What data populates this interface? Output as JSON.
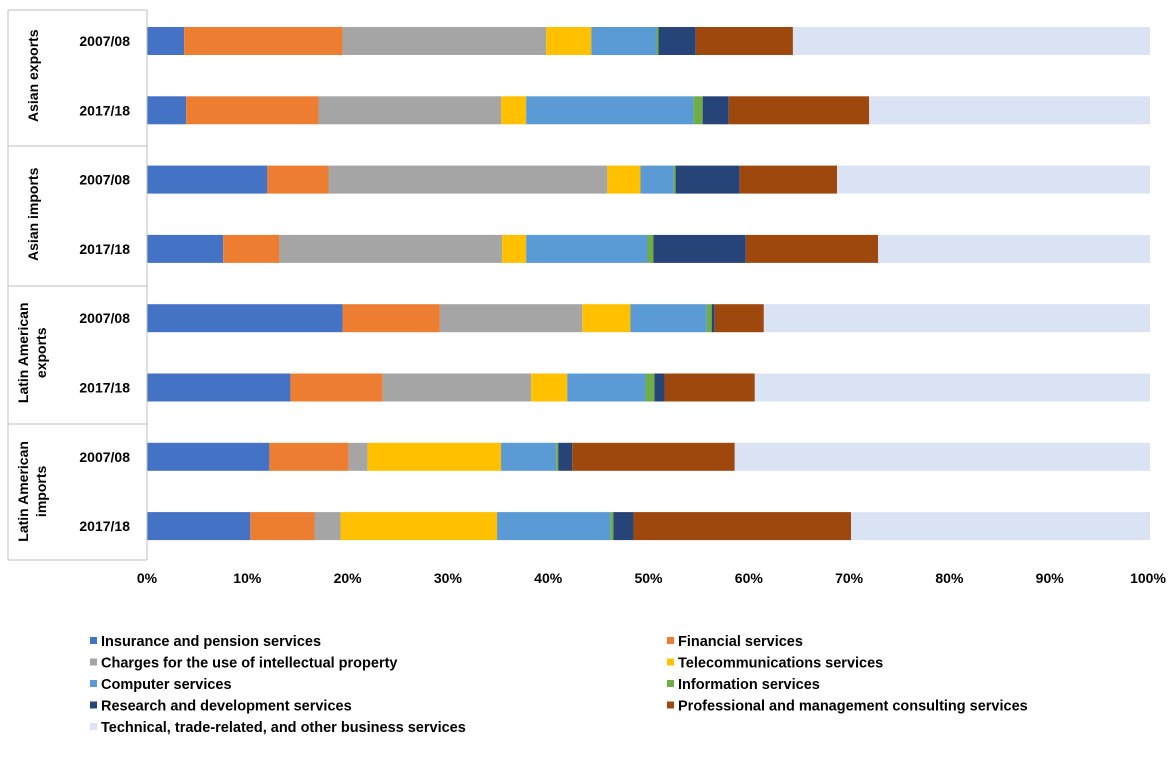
{
  "chart_data": {
    "type": "bar",
    "orientation": "horizontal",
    "stacked": "percent",
    "title": "",
    "xlabel": "",
    "ylabel": "",
    "xlim": [
      0,
      100
    ],
    "x_ticks": [
      "0%",
      "10%",
      "20%",
      "30%",
      "40%",
      "50%",
      "60%",
      "70%",
      "80%",
      "90%",
      "100%"
    ],
    "grid": false,
    "legend_position": "bottom",
    "groups": [
      {
        "label": "Asian exports",
        "lines": [
          "Asian exports"
        ]
      },
      {
        "label": "Asian imports",
        "lines": [
          "Asian imports"
        ]
      },
      {
        "label": "Latin American exports",
        "lines": [
          "Latin American",
          "exports"
        ]
      },
      {
        "label": "Latin American imports",
        "lines": [
          "Latin American",
          "imports"
        ]
      }
    ],
    "categories": [
      "2007/08",
      "2017/18",
      "2007/08",
      "2017/18",
      "2007/08",
      "2017/18",
      "2007/08",
      "2017/18"
    ],
    "series": [
      {
        "name": "Insurance and pension services",
        "color": "#4472C4",
        "values": [
          3.7,
          3.9,
          12.0,
          7.6,
          19.5,
          14.3,
          12.2,
          10.3
        ]
      },
      {
        "name": "Financial services",
        "color": "#ED7D31",
        "values": [
          15.8,
          13.2,
          6.1,
          5.6,
          9.7,
          9.2,
          7.9,
          6.4
        ]
      },
      {
        "name": "Charges for the use of intellectual property",
        "color": "#A5A5A5",
        "values": [
          20.3,
          18.2,
          27.8,
          22.2,
          14.2,
          14.8,
          1.9,
          2.6
        ]
      },
      {
        "name": "Telecommunications services",
        "color": "#FFC000",
        "values": [
          4.5,
          2.5,
          3.3,
          2.4,
          4.8,
          3.6,
          13.3,
          15.6
        ]
      },
      {
        "name": "Computer services",
        "color": "#5B9BD5",
        "values": [
          6.5,
          16.7,
          3.3,
          12.1,
          7.6,
          7.8,
          5.5,
          11.3
        ]
      },
      {
        "name": "Information services",
        "color": "#70AD47",
        "values": [
          0.2,
          0.9,
          0.2,
          0.6,
          0.5,
          0.9,
          0.2,
          0.3
        ]
      },
      {
        "name": "Research and development services",
        "color": "#264478",
        "values": [
          3.7,
          2.6,
          6.4,
          9.2,
          0.3,
          1.0,
          1.4,
          2.0
        ]
      },
      {
        "name": "Professional and management consulting services",
        "color": "#9E480E",
        "values": [
          9.7,
          14.0,
          9.7,
          13.2,
          4.9,
          9.0,
          16.2,
          21.7
        ]
      },
      {
        "name": "Technical, trade-related, and other business services",
        "color": "#DAE3F3",
        "values": [
          35.6,
          28.0,
          31.2,
          27.1,
          38.5,
          39.4,
          41.4,
          29.8
        ]
      }
    ]
  }
}
